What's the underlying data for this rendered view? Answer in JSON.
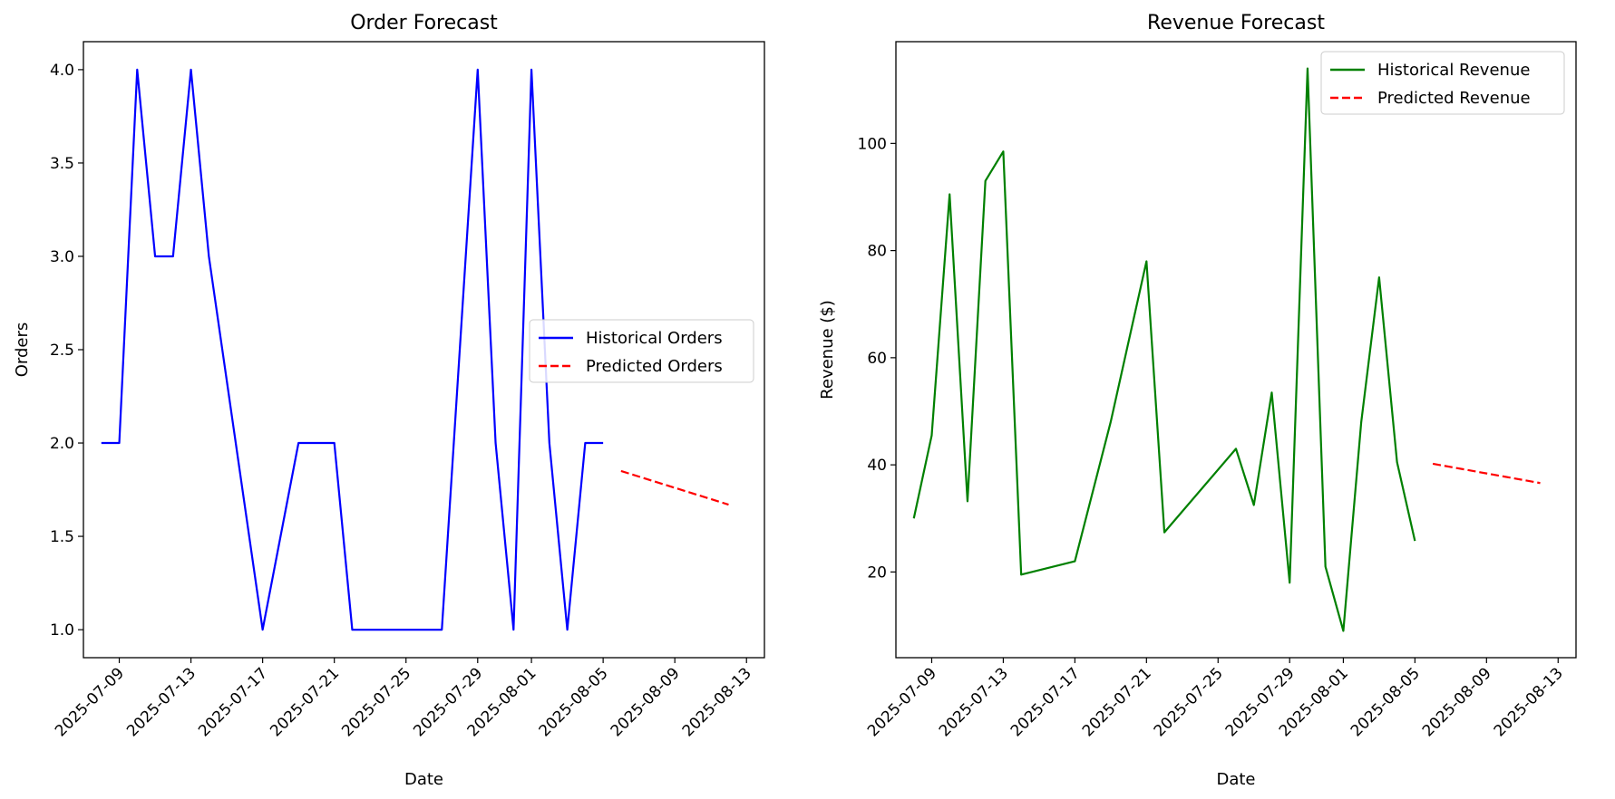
{
  "chart_data": [
    {
      "type": "line",
      "title": "Order Forecast",
      "xlabel": "Date",
      "ylabel": "Orders",
      "xlim": [
        "2025-07-07",
        "2025-08-14"
      ],
      "ylim": [
        0.85,
        4.15
      ],
      "yticks": [
        "1.0",
        "1.5",
        "2.0",
        "2.5",
        "3.0",
        "3.5",
        "4.0"
      ],
      "xticks": [
        "2025-07-09",
        "2025-07-13",
        "2025-07-17",
        "2025-07-21",
        "2025-07-25",
        "2025-07-29",
        "2025-08-01",
        "2025-08-05",
        "2025-08-09",
        "2025-08-13"
      ],
      "grid": false,
      "legend": "center-right",
      "series": [
        {
          "name": "Historical Orders",
          "style": "solid",
          "color": "#0000ff",
          "x": [
            "2025-07-08",
            "2025-07-09",
            "2025-07-10",
            "2025-07-11",
            "2025-07-12",
            "2025-07-13",
            "2025-07-14",
            "2025-07-17",
            "2025-07-19",
            "2025-07-20",
            "2025-07-21",
            "2025-07-22",
            "2025-07-23",
            "2025-07-25",
            "2025-07-27",
            "2025-07-29",
            "2025-07-30",
            "2025-07-31",
            "2025-08-01",
            "2025-08-02",
            "2025-08-03",
            "2025-08-04",
            "2025-08-05"
          ],
          "y": [
            2,
            2,
            4,
            3,
            3,
            4,
            3,
            1,
            2,
            2,
            2,
            1,
            1,
            1,
            1,
            4,
            2,
            1,
            4,
            2,
            1,
            2,
            2
          ]
        },
        {
          "name": "Predicted Orders",
          "style": "dashed",
          "color": "#ff0000",
          "x": [
            "2025-08-06",
            "2025-08-12"
          ],
          "y": [
            1.85,
            1.67
          ]
        }
      ]
    },
    {
      "type": "line",
      "title": "Revenue Forecast",
      "xlabel": "Date",
      "ylabel": "Revenue ($)",
      "xlim": [
        "2025-07-07",
        "2025-08-14"
      ],
      "ylim": [
        4,
        119
      ],
      "yticks": [
        "20",
        "40",
        "60",
        "80",
        "100"
      ],
      "xticks": [
        "2025-07-09",
        "2025-07-13",
        "2025-07-17",
        "2025-07-21",
        "2025-07-25",
        "2025-07-29",
        "2025-08-01",
        "2025-08-05",
        "2025-08-09",
        "2025-08-13"
      ],
      "grid": false,
      "legend": "top-right",
      "series": [
        {
          "name": "Historical Revenue",
          "style": "solid",
          "color": "#008000",
          "x": [
            "2025-07-08",
            "2025-07-09",
            "2025-07-10",
            "2025-07-11",
            "2025-07-12",
            "2025-07-13",
            "2025-07-14",
            "2025-07-17",
            "2025-07-19",
            "2025-07-21",
            "2025-07-22",
            "2025-07-26",
            "2025-07-27",
            "2025-07-28",
            "2025-07-29",
            "2025-07-30",
            "2025-07-31",
            "2025-08-01",
            "2025-08-02",
            "2025-08-03",
            "2025-08-04",
            "2025-08-05"
          ],
          "y": [
            30.0,
            45.5,
            90.5,
            33.2,
            93.0,
            98.5,
            19.5,
            22.0,
            48.0,
            78.0,
            27.4,
            43.0,
            32.5,
            53.5,
            18.0,
            114.0,
            21.0,
            9.0,
            48.0,
            75.0,
            40.5,
            25.8
          ]
        },
        {
          "name": "Predicted Revenue",
          "style": "dashed",
          "color": "#ff0000",
          "x": [
            "2025-08-06",
            "2025-08-12"
          ],
          "y": [
            40.2,
            36.6
          ]
        }
      ]
    }
  ]
}
